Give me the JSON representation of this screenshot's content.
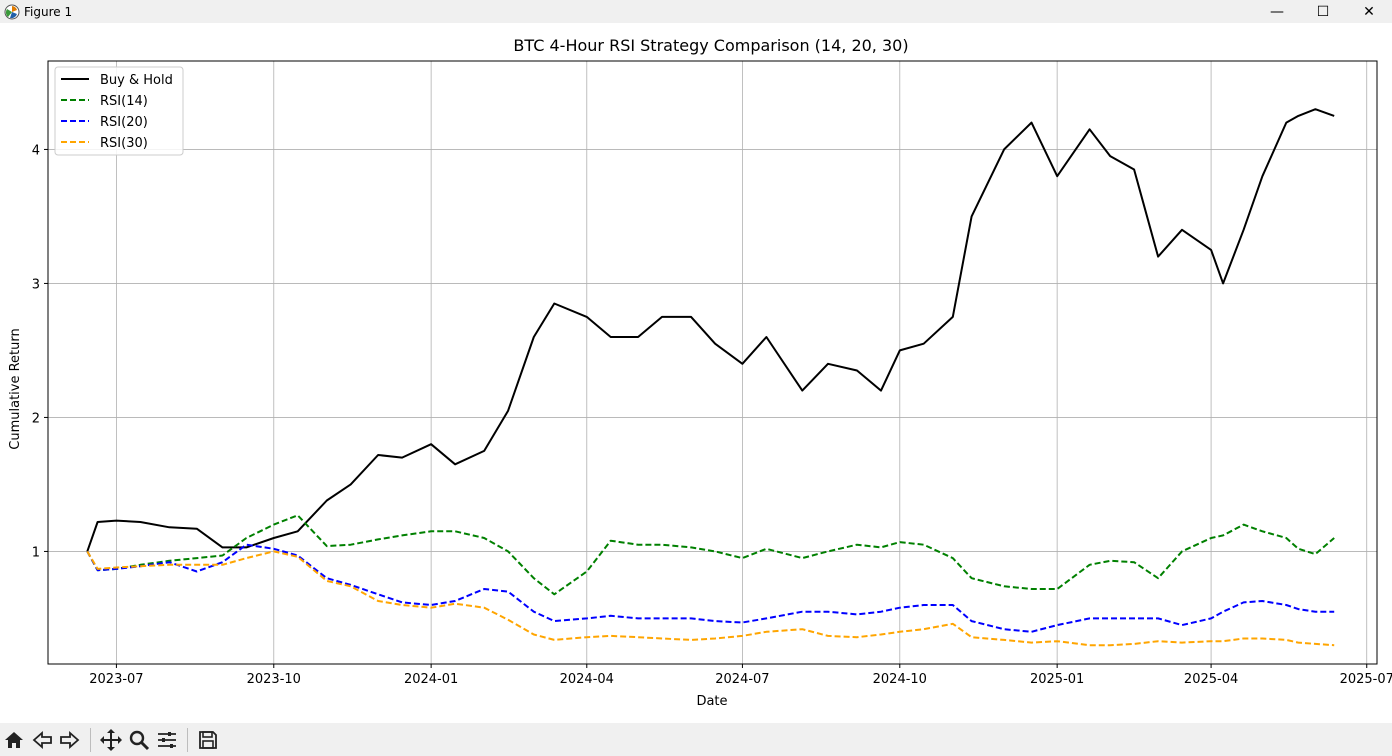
{
  "window": {
    "title": "Figure 1",
    "controls": {
      "minimize": "—",
      "maximize": "☐",
      "close": "✕"
    }
  },
  "toolbar": {
    "buttons": [
      "home-icon",
      "back-icon",
      "forward-icon",
      "pan-icon",
      "zoom-icon",
      "configure-icon",
      "save-icon"
    ]
  },
  "chart_data": {
    "type": "line",
    "title": "BTC 4-Hour RSI Strategy Comparison (14, 20, 30)",
    "xlabel": "Date",
    "ylabel": "Cumulative Return",
    "x_range": [
      "2023-05-22",
      "2025-07-07"
    ],
    "ylim": [
      0.16,
      4.66
    ],
    "x_ticks": [
      "2023-07",
      "2023-10",
      "2024-01",
      "2024-04",
      "2024-07",
      "2024-10",
      "2025-01",
      "2025-04",
      "2025-07"
    ],
    "y_ticks": [
      "1",
      "2",
      "3",
      "4"
    ],
    "grid": true,
    "legend_position": "upper-left",
    "x": [
      "2023-06-14",
      "2023-06-20",
      "2023-07-01",
      "2023-07-15",
      "2023-08-01",
      "2023-08-17",
      "2023-09-01",
      "2023-09-15",
      "2023-10-01",
      "2023-10-15",
      "2023-11-01",
      "2023-11-15",
      "2023-12-01",
      "2023-12-15",
      "2024-01-01",
      "2024-01-15",
      "2024-02-01",
      "2024-02-15",
      "2024-03-01",
      "2024-03-13",
      "2024-04-01",
      "2024-04-15",
      "2024-05-01",
      "2024-05-15",
      "2024-06-01",
      "2024-06-15",
      "2024-07-01",
      "2024-07-15",
      "2024-08-05",
      "2024-08-20",
      "2024-09-06",
      "2024-09-20",
      "2024-10-01",
      "2024-10-15",
      "2024-11-01",
      "2024-11-12",
      "2024-12-01",
      "2024-12-17",
      "2025-01-01",
      "2025-01-20",
      "2025-02-01",
      "2025-02-15",
      "2025-03-01",
      "2025-03-15",
      "2025-04-01",
      "2025-04-08",
      "2025-04-20",
      "2025-05-01",
      "2025-05-15",
      "2025-05-22",
      "2025-06-01",
      "2025-06-12"
    ],
    "series": [
      {
        "name": "Buy & Hold",
        "color": "#000000",
        "dashed": false,
        "values": [
          1.0,
          1.22,
          1.23,
          1.22,
          1.18,
          1.17,
          1.03,
          1.03,
          1.1,
          1.15,
          1.38,
          1.5,
          1.72,
          1.7,
          1.8,
          1.65,
          1.75,
          2.05,
          2.6,
          2.85,
          2.75,
          2.6,
          2.6,
          2.75,
          2.75,
          2.55,
          2.4,
          2.6,
          2.2,
          2.4,
          2.35,
          2.2,
          2.5,
          2.55,
          2.75,
          3.5,
          4.0,
          4.2,
          3.8,
          4.15,
          3.95,
          3.85,
          3.2,
          3.4,
          3.25,
          3.0,
          3.4,
          3.8,
          4.2,
          4.25,
          4.3,
          4.25
        ]
      },
      {
        "name": "RSI(14)",
        "color": "#008000",
        "dashed": true,
        "values": [
          1.0,
          0.86,
          0.87,
          0.9,
          0.93,
          0.95,
          0.97,
          1.1,
          1.2,
          1.27,
          1.04,
          1.05,
          1.09,
          1.12,
          1.15,
          1.15,
          1.1,
          1.0,
          0.8,
          0.68,
          0.85,
          1.08,
          1.05,
          1.05,
          1.03,
          1.0,
          0.95,
          1.02,
          0.95,
          1.0,
          1.05,
          1.03,
          1.07,
          1.05,
          0.95,
          0.8,
          0.74,
          0.72,
          0.72,
          0.9,
          0.93,
          0.92,
          0.8,
          1.0,
          1.1,
          1.12,
          1.2,
          1.15,
          1.1,
          1.02,
          0.98,
          1.1
        ]
      },
      {
        "name": "RSI(20)",
        "color": "#0000ff",
        "dashed": true,
        "values": [
          1.0,
          0.86,
          0.87,
          0.89,
          0.92,
          0.85,
          0.92,
          1.05,
          1.02,
          0.97,
          0.8,
          0.75,
          0.68,
          0.62,
          0.6,
          0.63,
          0.72,
          0.7,
          0.55,
          0.48,
          0.5,
          0.52,
          0.5,
          0.5,
          0.5,
          0.48,
          0.47,
          0.5,
          0.55,
          0.55,
          0.53,
          0.55,
          0.58,
          0.6,
          0.6,
          0.48,
          0.42,
          0.4,
          0.45,
          0.5,
          0.5,
          0.5,
          0.5,
          0.45,
          0.5,
          0.55,
          0.62,
          0.63,
          0.6,
          0.57,
          0.55,
          0.55
        ]
      },
      {
        "name": "RSI(30)",
        "color": "#ffa500",
        "dashed": true,
        "values": [
          1.0,
          0.87,
          0.88,
          0.89,
          0.9,
          0.9,
          0.9,
          0.95,
          1.0,
          0.96,
          0.78,
          0.74,
          0.63,
          0.6,
          0.58,
          0.61,
          0.58,
          0.49,
          0.38,
          0.34,
          0.36,
          0.37,
          0.36,
          0.35,
          0.34,
          0.35,
          0.37,
          0.4,
          0.42,
          0.37,
          0.36,
          0.38,
          0.4,
          0.42,
          0.46,
          0.36,
          0.34,
          0.32,
          0.33,
          0.3,
          0.3,
          0.31,
          0.33,
          0.32,
          0.33,
          0.33,
          0.35,
          0.35,
          0.34,
          0.32,
          0.31,
          0.3
        ]
      }
    ]
  }
}
